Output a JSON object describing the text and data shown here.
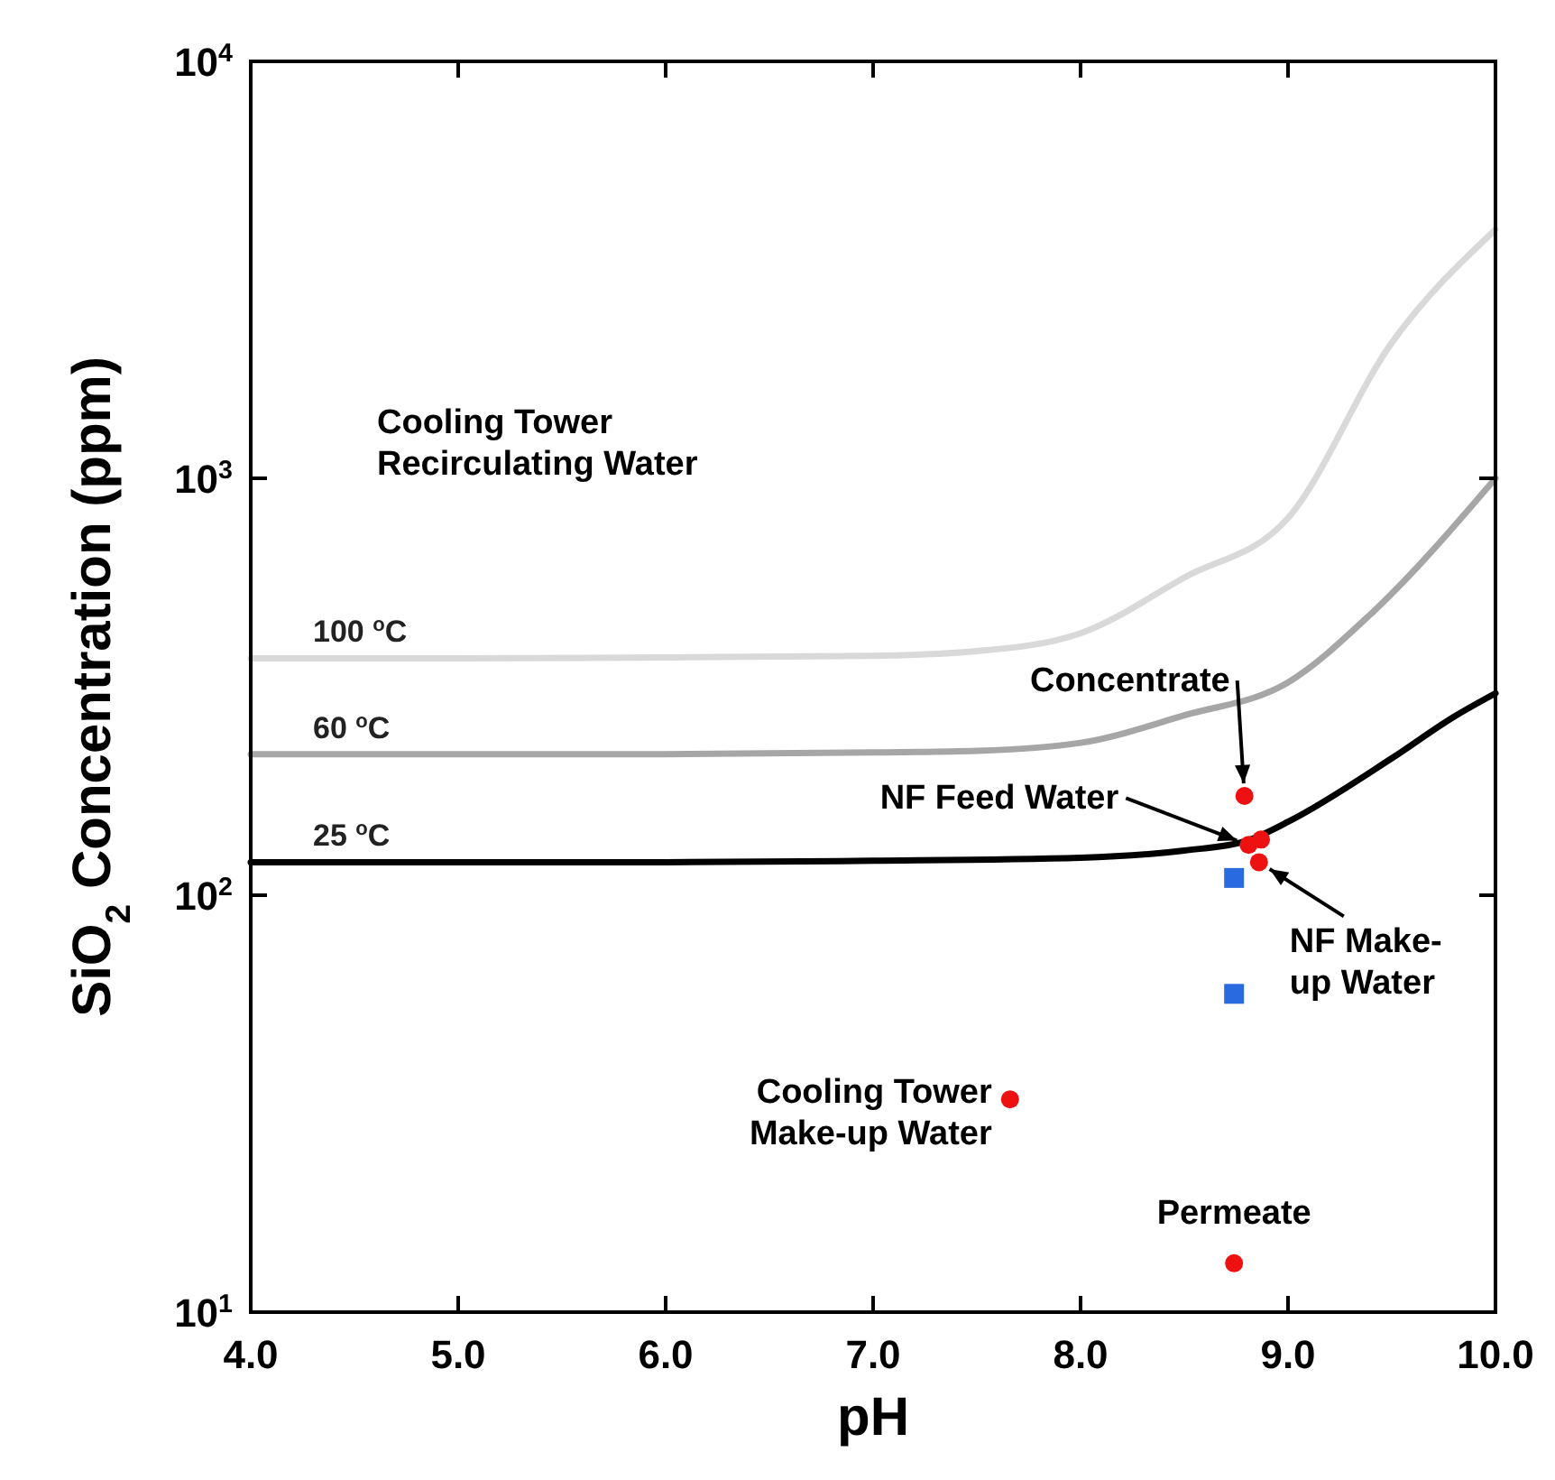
{
  "chart_data": {
    "type": "line",
    "xlabel": "pH",
    "ylabel": "SiO$_{2}$ Concentration (ppm)",
    "log": "y",
    "xlim": [
      4,
      10
    ],
    "ylim": [
      10,
      10000
    ],
    "xticks": [
      {
        "value": 4,
        "label": "4.0"
      },
      {
        "value": 5,
        "label": "5.0"
      },
      {
        "value": 6,
        "label": "6.0"
      },
      {
        "value": 7,
        "label": "7.0"
      },
      {
        "value": 8,
        "label": "8.0"
      },
      {
        "value": 9,
        "label": "9.0"
      },
      {
        "value": 10,
        "label": "10.0"
      }
    ],
    "yticks": [
      {
        "value": 10,
        "label": "10$^{1}$"
      },
      {
        "value": 100,
        "label": "10$^{2}$"
      },
      {
        "value": 1000,
        "label": "10$^{3}$"
      },
      {
        "value": 10000,
        "label": "10$^{4}$"
      }
    ],
    "grid": false,
    "series": [
      {
        "name": "100 $^{o}$C",
        "color": "#d9d9d9",
        "x": [
          4,
          5,
          6,
          7,
          7.5,
          8,
          8.5,
          9,
          9.5,
          10
        ],
        "values": [
          370,
          370,
          372,
          375,
          385,
          425,
          578,
          803,
          2113,
          3950
        ]
      },
      {
        "name": "60 $^{o}$C",
        "color": "#a6a6a6",
        "x": [
          4,
          5,
          6,
          7,
          7.5,
          8,
          8.5,
          9,
          9.4,
          10
        ],
        "values": [
          218,
          218,
          218,
          220,
          222,
          232,
          270,
          324,
          473,
          1000
        ]
      },
      {
        "name": "25 $^{o}$C",
        "color": "#000000",
        "x": [
          4,
          5,
          6,
          7,
          8,
          8.5,
          8.8,
          9,
          9.5,
          9.8,
          10
        ],
        "values": [
          120,
          120,
          120,
          121,
          123,
          128,
          135,
          150,
          213,
          268,
          305
        ]
      },
      {
        "type": "scatter",
        "color": "#ee1111",
        "marker": "circle",
        "x": [
          8.79,
          8.81,
          8.87,
          8.86,
          7.66,
          8.74
        ],
        "values": [
          173,
          132,
          136,
          120,
          32.4,
          13.1
        ]
      },
      {
        "type": "scatter",
        "color": "#2a6ae0",
        "marker": "square",
        "x": [
          8.74,
          8.74
        ],
        "values": [
          110,
          58
        ]
      }
    ],
    "annotations": [
      "Cooling Tower\nRecirculating Water",
      {
        "text": "Concentrate",
        "x": 8.79,
        "y": 173
      },
      {
        "text": "NF Feed Water",
        "x": 8.81,
        "y": 132
      },
      {
        "text": "NF Make-\nup Water",
        "x": 8.86,
        "y": 120
      },
      {
        "text": "Cooling Tower\nMake-up Water",
        "x": 7.66,
        "y": 32.4
      },
      {
        "text": "Permeate",
        "x": 8.74,
        "y": 13.1
      }
    ]
  }
}
